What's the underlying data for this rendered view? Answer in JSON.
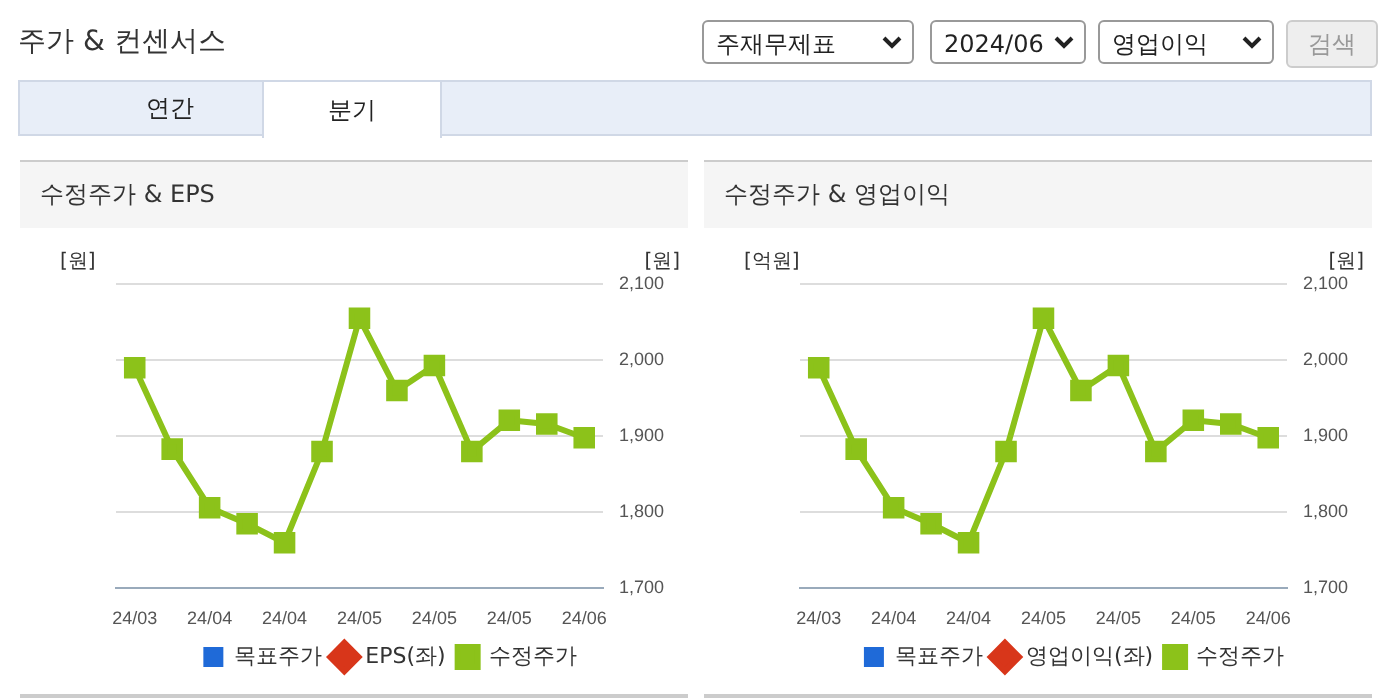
{
  "chart_data": [
    {
      "type": "other",
      "title": "주가 & 컨센서스",
      "annotations": [
        "주재무제표",
        "2024/06",
        "영업이익",
        "검색",
        "연간",
        "분기"
      ]
    },
    {
      "type": "line",
      "title": "수정주가 & EPS",
      "ylabel": "[원]",
      "y2label": "[원]",
      "categories": [
        "24/03",
        null,
        "24/04",
        null,
        "24/04",
        null,
        "24/05",
        null,
        "24/05",
        null,
        "24/05",
        null,
        "24/06"
      ],
      "y2lim": [
        1700,
        2100
      ],
      "y2ticks": [
        {
          "value": 1700,
          "label": "1,700"
        },
        {
          "value": 1800,
          "label": "1,800"
        },
        {
          "value": 1900,
          "label": "1,900"
        },
        {
          "value": 2000,
          "label": "2,000"
        },
        {
          "value": 2100,
          "label": "2,100"
        }
      ],
      "grid": "y",
      "legend": "bottom",
      "tick_labels": "x",
      "series": [
        {
          "name": "목표주가",
          "color": "#1f6ad8",
          "type": "bar",
          "values": [
            null,
            null,
            null,
            null,
            null,
            null,
            null,
            null,
            null,
            null,
            null,
            null,
            null
          ]
        },
        {
          "name": "EPS(좌)",
          "color": "#d8361a",
          "marker": "diamond",
          "values": [
            null,
            null,
            null,
            null,
            null,
            null,
            null,
            null,
            null,
            null,
            null,
            null,
            null
          ]
        },
        {
          "name": "수정주가",
          "color": "#8cc21a",
          "marker": "square",
          "axis": "y2",
          "values": [
            1990,
            1883,
            1806,
            1785,
            1760,
            1880,
            2055,
            1960,
            1993,
            1880,
            1921,
            1916,
            1898
          ]
        }
      ]
    },
    {
      "type": "line",
      "title": "수정주가 & 영업이익",
      "ylabel": "[억원]",
      "y2label": "[원]",
      "categories": [
        "24/03",
        null,
        "24/04",
        null,
        "24/04",
        null,
        "24/05",
        null,
        "24/05",
        null,
        "24/05",
        null,
        "24/06"
      ],
      "y2lim": [
        1700,
        2100
      ],
      "y2ticks": [
        {
          "value": 1700,
          "label": "1,700"
        },
        {
          "value": 1800,
          "label": "1,800"
        },
        {
          "value": 1900,
          "label": "1,900"
        },
        {
          "value": 2000,
          "label": "2,000"
        },
        {
          "value": 2100,
          "label": "2,100"
        }
      ],
      "grid": "y",
      "legend": "bottom",
      "tick_labels": "x",
      "series": [
        {
          "name": "목표주가",
          "color": "#1f6ad8",
          "type": "bar",
          "values": [
            null,
            null,
            null,
            null,
            null,
            null,
            null,
            null,
            null,
            null,
            null,
            null,
            null
          ]
        },
        {
          "name": "영업이익(좌)",
          "color": "#d8361a",
          "marker": "diamond",
          "values": [
            null,
            null,
            null,
            null,
            null,
            null,
            null,
            null,
            null,
            null,
            null,
            null,
            null
          ]
        },
        {
          "name": "수정주가",
          "color": "#8cc21a",
          "marker": "square",
          "axis": "y2",
          "values": [
            1990,
            1883,
            1806,
            1785,
            1760,
            1880,
            2055,
            1960,
            1993,
            1880,
            1921,
            1916,
            1898
          ]
        }
      ]
    }
  ]
}
